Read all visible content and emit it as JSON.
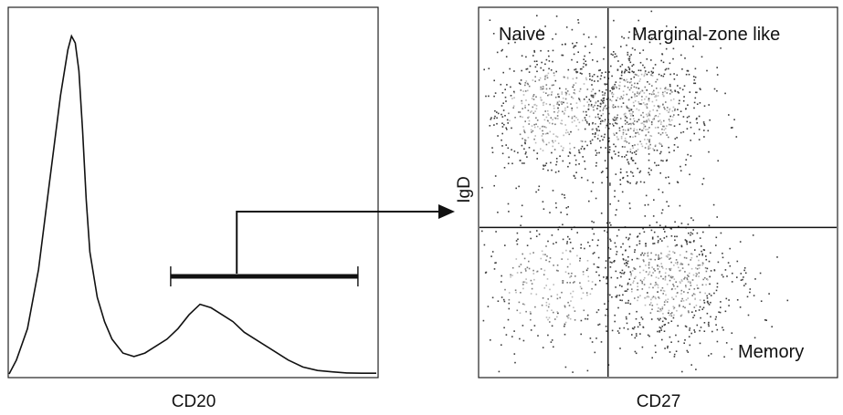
{
  "figure": {
    "left_panel": {
      "xlabel": "CD20",
      "ylabel": ""
    },
    "right_panel": {
      "xlabel": "CD27",
      "ylabel": "IgD",
      "quadrant_labels": {
        "top_left": "Naive",
        "top_right": "Marginal-zone like",
        "bottom_right": "Memory"
      }
    }
  },
  "chart_data": [
    {
      "type": "line",
      "title": "",
      "xlabel": "CD20",
      "ylabel": "",
      "xlim": [
        0,
        1
      ],
      "ylim": [
        0,
        1
      ],
      "grid": false,
      "series": [
        {
          "x": [
            0.0,
            0.02,
            0.05,
            0.08,
            0.11,
            0.14,
            0.16,
            0.17,
            0.18,
            0.19,
            0.2,
            0.21,
            0.22,
            0.24,
            0.26,
            0.28,
            0.31,
            0.34,
            0.37,
            0.4,
            0.43,
            0.46,
            0.49,
            0.52,
            0.55,
            0.58,
            0.61,
            0.64,
            0.67,
            0.7,
            0.73,
            0.76,
            0.8,
            0.84,
            0.88,
            0.92,
            0.96,
            1.0
          ],
          "y": [
            0.0,
            0.04,
            0.13,
            0.3,
            0.55,
            0.8,
            0.93,
            0.97,
            0.95,
            0.87,
            0.7,
            0.5,
            0.35,
            0.22,
            0.15,
            0.1,
            0.06,
            0.05,
            0.06,
            0.08,
            0.1,
            0.13,
            0.17,
            0.2,
            0.19,
            0.17,
            0.15,
            0.12,
            0.1,
            0.08,
            0.06,
            0.04,
            0.02,
            0.01,
            0.006,
            0.003,
            0.002,
            0.002
          ]
        }
      ],
      "annotations": {
        "gate": {
          "x_start": 0.44,
          "x_end": 0.95,
          "level": 0.28
        },
        "arrow_target": "IgD vs CD27 plot"
      }
    },
    {
      "type": "scatter",
      "title": "",
      "xlabel": "CD27",
      "ylabel": "IgD",
      "xlim": [
        0,
        1
      ],
      "ylim": [
        0,
        1
      ],
      "grid": false,
      "quadrant_lines": {
        "x": 0.36,
        "y": 0.405
      },
      "quadrant_labels": [
        "Naive",
        "Marginal-zone like",
        "Memory"
      ],
      "clusters": [
        {
          "name": "Naive",
          "center": [
            0.22,
            0.72
          ],
          "spread": [
            0.13,
            0.1
          ]
        },
        {
          "name": "Marginal-zone like",
          "center": [
            0.45,
            0.72
          ],
          "spread": [
            0.09,
            0.1
          ]
        },
        {
          "name": "Memory",
          "center": [
            0.53,
            0.26
          ],
          "spread": [
            0.1,
            0.09
          ]
        },
        {
          "name": "Lower-left scatter",
          "center": [
            0.2,
            0.25
          ],
          "spread": [
            0.12,
            0.1
          ]
        }
      ]
    }
  ]
}
